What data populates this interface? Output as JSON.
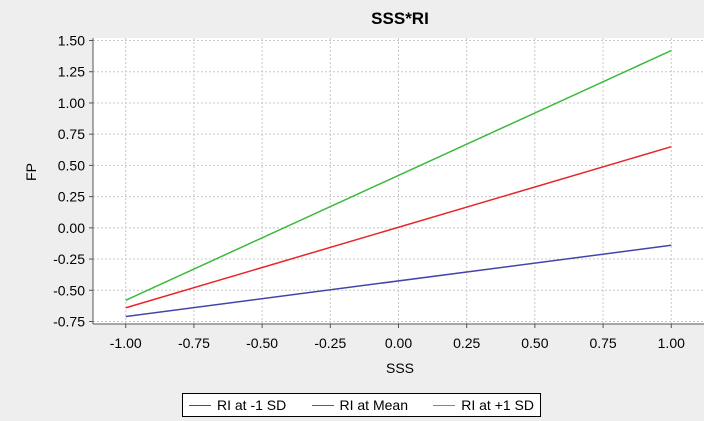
{
  "chart_data": {
    "type": "line",
    "title": "SSS*RI",
    "xlabel": "SSS",
    "ylabel": "FP",
    "xlim": [
      -1.12,
      1.12
    ],
    "ylim": [
      -0.77,
      1.52
    ],
    "x": [
      -1.0,
      1.0
    ],
    "x_ticks": [
      "-1.00",
      "-0.75",
      "-0.50",
      "-0.25",
      "0.00",
      "0.25",
      "0.50",
      "0.75",
      "1.00"
    ],
    "x_tick_values": [
      -1.0,
      -0.75,
      -0.5,
      -0.25,
      0.0,
      0.25,
      0.5,
      0.75,
      1.0
    ],
    "y_ticks": [
      "-0.75",
      "-0.50",
      "-0.25",
      "0.00",
      "0.25",
      "0.50",
      "0.75",
      "1.00",
      "1.25",
      "1.50"
    ],
    "y_tick_values": [
      -0.75,
      -0.5,
      -0.25,
      0.0,
      0.25,
      0.5,
      0.75,
      1.0,
      1.25,
      1.5
    ],
    "grid": true,
    "legend_position": "bottom",
    "series": [
      {
        "name": "RI at -1 SD",
        "color": "#4444aa",
        "values": [
          -0.71,
          -0.14
        ]
      },
      {
        "name": "RI at Mean",
        "color": "#e8262a",
        "values": [
          -0.64,
          0.65
        ]
      },
      {
        "name": "RI at +1 SD",
        "color": "#3cb83c",
        "values": [
          -0.58,
          1.42
        ]
      }
    ]
  }
}
